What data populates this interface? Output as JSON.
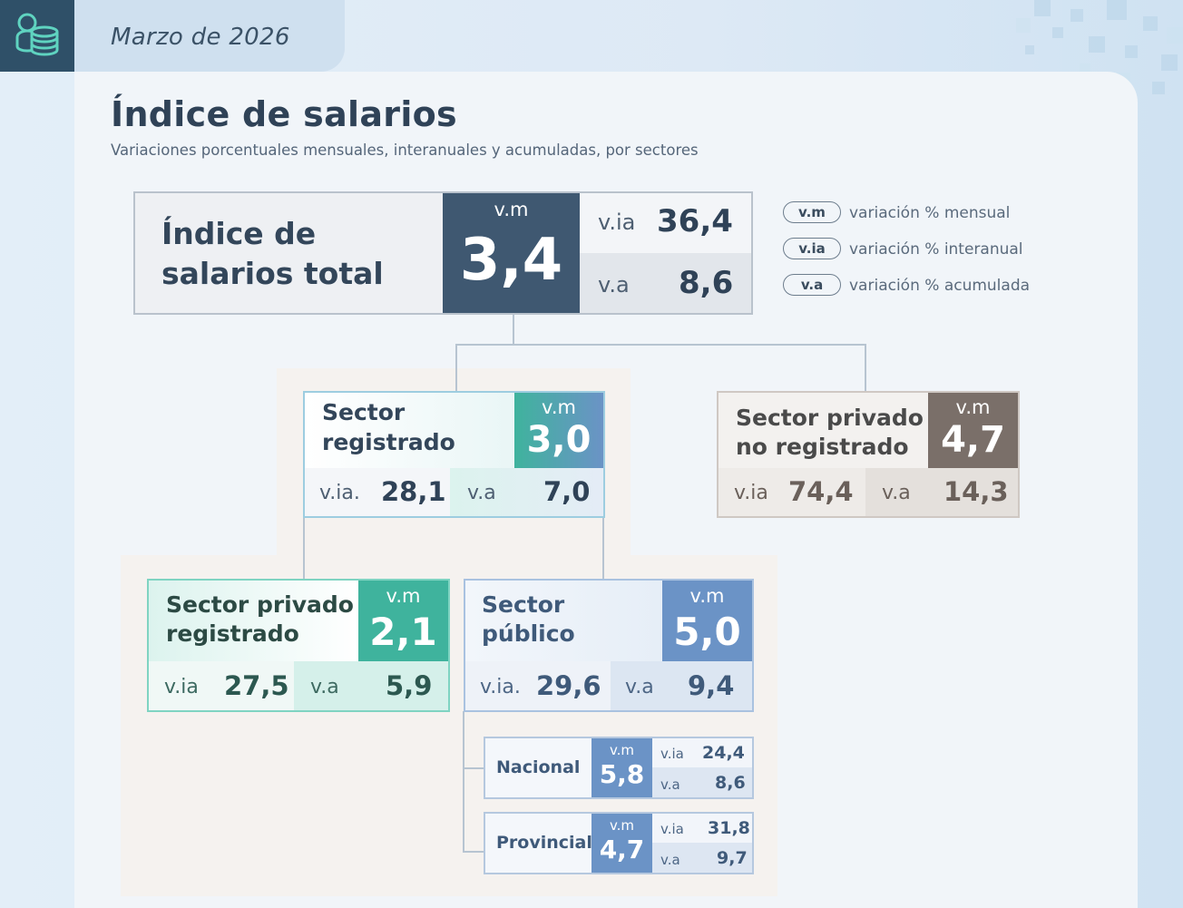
{
  "header": {
    "date": "Marzo de 2026",
    "icon": "coins-stack-icon"
  },
  "title": "Índice de salarios",
  "subtitle": "Variaciones porcentuales mensuales, interanuales y acumuladas, por sectores",
  "legend": [
    {
      "key": "v.m",
      "text": "variación % mensual"
    },
    {
      "key": "v.ia",
      "text": "variación % interanual"
    },
    {
      "key": "v.a",
      "text": "variación % acumulada"
    }
  ],
  "total": {
    "label_line1": "Índice de",
    "label_line2": "salarios total",
    "vm_label": "v.m",
    "vm": "3,4",
    "via_label": "v.ia",
    "via": "36,4",
    "va_label": "v.a",
    "va": "8,6"
  },
  "registrado": {
    "label_line1": "Sector",
    "label_line2": "registrado",
    "vm_label": "v.m",
    "vm": "3,0",
    "via_label": "v.ia.",
    "via": "28,1",
    "va_label": "v.a",
    "va": "7,0"
  },
  "no_registrado": {
    "label_line1": "Sector privado",
    "label_line2": "no registrado",
    "vm_label": "v.m",
    "vm": "4,7",
    "via_label": "v.ia",
    "via": "74,4",
    "va_label": "v.a",
    "va": "14,3"
  },
  "privado_registrado": {
    "label_line1": "Sector privado",
    "label_line2": "registrado",
    "vm_label": "v.m",
    "vm": "2,1",
    "via_label": "v.ia",
    "via": "27,5",
    "va_label": "v.a",
    "va": "5,9"
  },
  "publico": {
    "label_line1": "Sector",
    "label_line2": "público",
    "vm_label": "v.m",
    "vm": "5,0",
    "via_label": "v.ia.",
    "via": "29,6",
    "va_label": "v.a",
    "va": "9,4"
  },
  "nacional": {
    "label": "Nacional",
    "vm_label": "v.m",
    "vm": "5,8",
    "via_label": "v.ia",
    "via": "24,4",
    "va_label": "v.a",
    "va": "8,6"
  },
  "provincial": {
    "label": "Provincial",
    "vm_label": "v.m",
    "vm": "4,7",
    "via_label": "v.ia",
    "via": "31,8",
    "va_label": "v.a",
    "va": "9,7"
  },
  "colors": {
    "dark_navy": "#3f5871",
    "teal": "#3fb39d",
    "blue": "#6b93c6",
    "taupe": "#7a6f69",
    "light_teal": "#dcf3ee",
    "light_blue": "#e4ecf6",
    "light_gray": "#e8ebef"
  }
}
